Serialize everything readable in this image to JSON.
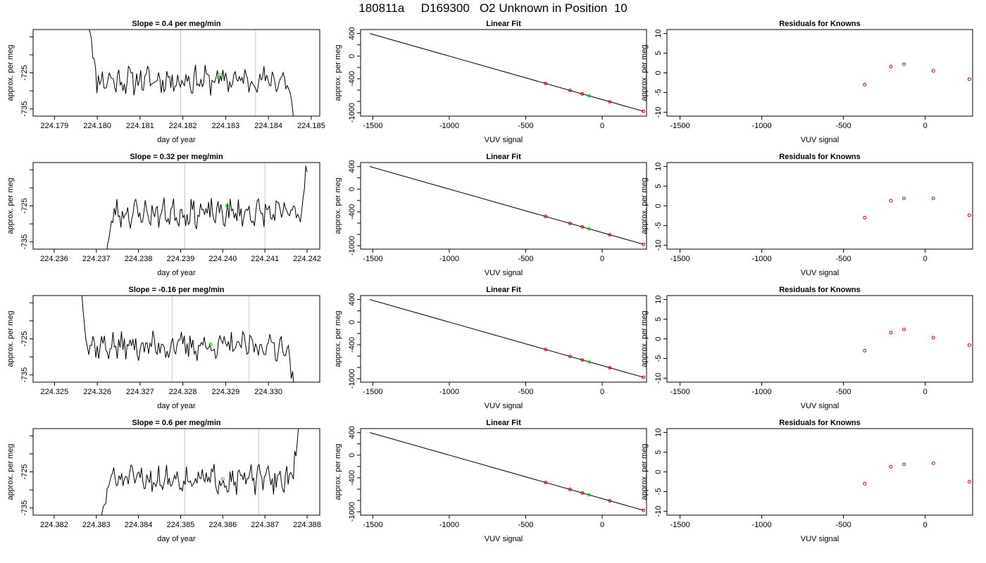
{
  "figure": {
    "title": "180811a     D169300   O2 Unknown in Position  10"
  },
  "colors": {
    "line": "#000000",
    "known_points": "#cc0000",
    "unknown_point": "#00dd00",
    "vertical_marker": "#c8c8c8"
  },
  "chart_data": [
    {
      "type": "line",
      "row": 0,
      "panel": "timeseries",
      "title": "Slope =  0.4  per meg/min",
      "xlabel": "day of year",
      "ylabel": "approx. per meg",
      "xlim": [
        224.1785,
        224.1852
      ],
      "ylim": [
        -737,
        -713
      ],
      "xticks": [
        "224.179",
        "224.180",
        "224.181",
        "224.182",
        "224.183",
        "224.184",
        "224.185"
      ],
      "yticks": [
        "-725",
        "-735"
      ],
      "trace_start": 224.1798,
      "trace_end": 224.1846,
      "vlines": [
        224.18195,
        224.1837
      ],
      "unknown_point": [
        224.18285,
        -725.5
      ],
      "seed": 11
    },
    {
      "type": "scatter",
      "row": 0,
      "panel": "fit",
      "title": "Linear Fit",
      "xlabel": "VUV signal",
      "ylabel": "approx. per meg",
      "xlim": [
        -1580,
        290
      ],
      "ylim": [
        -1060,
        470
      ],
      "xticks": [
        "-1500",
        "-1000",
        "-500",
        "0"
      ],
      "yticks": [
        "400",
        "0",
        "-400",
        "-1000"
      ],
      "fit_line": {
        "x": [
          -1520,
          270
        ],
        "y": [
          400,
          -975
        ]
      },
      "known_x": [
        -370,
        -210,
        -130,
        50,
        270
      ],
      "unknown_x": -85
    },
    {
      "type": "scatter",
      "row": 0,
      "panel": "residuals",
      "title": "Residuals for Knowns",
      "xlabel": "VUV signal",
      "ylabel": "approx. per meg",
      "xlim": [
        -1580,
        290
      ],
      "ylim": [
        -11,
        11
      ],
      "xticks": [
        "-1500",
        "-1000",
        "-500",
        "0"
      ],
      "yticks": [
        "10",
        "5",
        "0",
        "-5",
        "-10"
      ],
      "x": [
        -370,
        -210,
        -130,
        50,
        270
      ],
      "y": [
        -3.0,
        1.6,
        2.2,
        0.5,
        -1.6
      ]
    },
    {
      "type": "line",
      "row": 1,
      "panel": "timeseries",
      "title": "Slope =  0.32  per meg/min",
      "xlabel": "day of year",
      "ylabel": "approx. per meg",
      "xlim": [
        224.2355,
        224.2423
      ],
      "ylim": [
        -737,
        -713
      ],
      "xticks": [
        "224.236",
        "224.237",
        "224.238",
        "224.239",
        "224.240",
        "224.241",
        "224.242"
      ],
      "yticks": [
        "-725",
        "-735"
      ],
      "trace_start": 224.2372,
      "trace_end": 224.242,
      "vlines": [
        224.2391,
        224.241
      ],
      "unknown_point": [
        224.2401,
        -725.0
      ],
      "seed": 23
    },
    {
      "type": "scatter",
      "row": 1,
      "panel": "fit",
      "title": "Linear Fit",
      "xlabel": "VUV signal",
      "ylabel": "approx. per meg",
      "xlim": [
        -1580,
        290
      ],
      "ylim": [
        -1060,
        470
      ],
      "xticks": [
        "-1500",
        "-1000",
        "-500",
        "0"
      ],
      "yticks": [
        "400",
        "0",
        "-400",
        "-1000"
      ],
      "fit_line": {
        "x": [
          -1520,
          270
        ],
        "y": [
          400,
          -975
        ]
      },
      "known_x": [
        -370,
        -210,
        -130,
        50,
        270
      ],
      "unknown_x": -85
    },
    {
      "type": "scatter",
      "row": 1,
      "panel": "residuals",
      "title": "Residuals for Knowns",
      "xlabel": "VUV signal",
      "ylabel": "approx. per meg",
      "xlim": [
        -1580,
        290
      ],
      "ylim": [
        -11,
        11
      ],
      "xticks": [
        "-1500",
        "-1000",
        "-500",
        "0"
      ],
      "yticks": [
        "10",
        "5",
        "0",
        "-5",
        "-10"
      ],
      "x": [
        -370,
        -210,
        -130,
        50,
        270
      ],
      "y": [
        -3.0,
        1.3,
        1.9,
        1.9,
        -2.4
      ]
    },
    {
      "type": "line",
      "row": 2,
      "panel": "timeseries",
      "title": "Slope =  -0.16  per meg/min",
      "xlabel": "day of year",
      "ylabel": "approx. per meg",
      "xlim": [
        224.3245,
        224.3312
      ],
      "ylim": [
        -737,
        -713
      ],
      "xticks": [
        "224.325",
        "224.326",
        "224.327",
        "224.328",
        "224.329",
        "224.330"
      ],
      "yticks": [
        "-725",
        "-735"
      ],
      "trace_start": 224.3256,
      "trace_end": 224.3306,
      "vlines": [
        224.32775,
        224.32955
      ],
      "unknown_point": [
        224.32865,
        -726.5
      ],
      "seed": 37
    },
    {
      "type": "scatter",
      "row": 2,
      "panel": "fit",
      "title": "Linear Fit",
      "xlabel": "VUV signal",
      "ylabel": "approx. per meg",
      "xlim": [
        -1580,
        290
      ],
      "ylim": [
        -1060,
        470
      ],
      "xticks": [
        "-1500",
        "-1000",
        "-500",
        "0"
      ],
      "yticks": [
        "400",
        "0",
        "-400",
        "-1000"
      ],
      "fit_line": {
        "x": [
          -1520,
          270
        ],
        "y": [
          400,
          -975
        ]
      },
      "known_x": [
        -370,
        -210,
        -130,
        50,
        270
      ],
      "unknown_x": -85
    },
    {
      "type": "scatter",
      "row": 2,
      "panel": "residuals",
      "title": "Residuals for Knowns",
      "xlabel": "VUV signal",
      "ylabel": "approx. per meg",
      "xlim": [
        -1580,
        290
      ],
      "ylim": [
        -11,
        11
      ],
      "xticks": [
        "-1500",
        "-1000",
        "-500",
        "0"
      ],
      "yticks": [
        "10",
        "5",
        "0",
        "-5",
        "-10"
      ],
      "x": [
        -370,
        -210,
        -130,
        50,
        270
      ],
      "y": [
        -3.0,
        1.6,
        2.4,
        0.3,
        -1.6
      ]
    },
    {
      "type": "line",
      "row": 3,
      "panel": "timeseries",
      "title": "Slope =  0.6  per meg/min",
      "xlabel": "day of year",
      "ylabel": "approx. per meg",
      "xlim": [
        224.3815,
        224.3883
      ],
      "ylim": [
        -737,
        -713
      ],
      "xticks": [
        "224.382",
        "224.383",
        "224.384",
        "224.385",
        "224.386",
        "224.387",
        "224.388"
      ],
      "yticks": [
        "-725",
        "-735"
      ],
      "trace_start": 224.3831,
      "trace_end": 224.3878,
      "vlines": [
        224.3851,
        224.38685
      ],
      "unknown_point": [
        224.386,
        -727.0
      ],
      "seed": 51
    },
    {
      "type": "scatter",
      "row": 3,
      "panel": "fit",
      "title": "Linear Fit",
      "xlabel": "VUV signal",
      "ylabel": "approx. per meg",
      "xlim": [
        -1580,
        290
      ],
      "ylim": [
        -1060,
        470
      ],
      "xticks": [
        "-1500",
        "-1000",
        "-500",
        "0"
      ],
      "yticks": [
        "400",
        "0",
        "-400",
        "-1000"
      ],
      "fit_line": {
        "x": [
          -1520,
          270
        ],
        "y": [
          400,
          -975
        ]
      },
      "known_x": [
        -370,
        -210,
        -130,
        50,
        270
      ],
      "unknown_x": -85
    },
    {
      "type": "scatter",
      "row": 3,
      "panel": "residuals",
      "title": "Residuals for Knowns",
      "xlabel": "VUV signal",
      "ylabel": "approx. per meg",
      "xlim": [
        -1580,
        290
      ],
      "ylim": [
        -11,
        11
      ],
      "xticks": [
        "-1500",
        "-1000",
        "-500",
        "0"
      ],
      "yticks": [
        "10",
        "5",
        "0",
        "-5",
        "-10"
      ],
      "x": [
        -370,
        -210,
        -130,
        50,
        270
      ],
      "y": [
        -3.0,
        1.3,
        1.9,
        2.2,
        -2.5
      ]
    }
  ]
}
